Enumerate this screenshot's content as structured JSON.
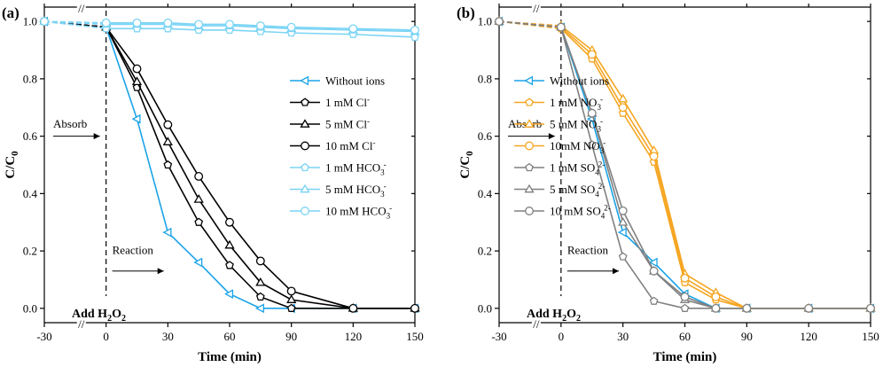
{
  "chart_data": [
    {
      "type": "line",
      "panel_label": "(a)",
      "xlabel": "Time (min)",
      "ylabel": {
        "main": "C/C",
        "sub": "0"
      },
      "x_ticks": [
        "-30",
        "0",
        "30",
        "60",
        "90",
        "120",
        "150"
      ],
      "y_ticks": [
        "0.0",
        "0.2",
        "0.4",
        "0.6",
        "0.8",
        "1.0"
      ],
      "xlim": [
        -30,
        150
      ],
      "ylim": [
        -0.05,
        1.05
      ],
      "axis_break": "//",
      "annotations": {
        "absorb": "Absorb",
        "reaction": "Reaction",
        "add": {
          "main": "Add H",
          "sub": "2",
          "mid": "O",
          "sub2": "2"
        }
      },
      "series": [
        {
          "name": "Without ions",
          "sup": "",
          "sub": "",
          "color": "#1AA3E8",
          "marker": "tri-left",
          "x": [
            -30,
            0,
            15,
            30,
            45,
            60,
            75,
            90,
            120,
            150
          ],
          "y": [
            1.0,
            0.98,
            0.66,
            0.265,
            0.16,
            0.05,
            0.0,
            0.0,
            0.0,
            0.0
          ]
        },
        {
          "name": "1 mM Cl",
          "sup": "-",
          "sub": "",
          "color": "#000000",
          "marker": "pentagon",
          "x": [
            -30,
            0,
            15,
            30,
            45,
            60,
            75,
            90,
            120,
            150
          ],
          "y": [
            1.0,
            0.98,
            0.77,
            0.5,
            0.3,
            0.15,
            0.04,
            0.0,
            0.0,
            0.0
          ]
        },
        {
          "name": "5 mM Cl",
          "sup": "-",
          "sub": "",
          "color": "#000000",
          "marker": "triangle",
          "x": [
            -30,
            0,
            15,
            30,
            45,
            60,
            75,
            90,
            120,
            150
          ],
          "y": [
            1.0,
            0.98,
            0.79,
            0.58,
            0.38,
            0.22,
            0.09,
            0.03,
            0.0,
            0.0
          ]
        },
        {
          "name": "10 mM Cl",
          "sup": "-",
          "sub": "",
          "color": "#000000",
          "marker": "circle",
          "x": [
            -30,
            0,
            15,
            30,
            45,
            60,
            75,
            90,
            120,
            150
          ],
          "y": [
            1.0,
            0.98,
            0.835,
            0.64,
            0.46,
            0.3,
            0.165,
            0.06,
            0.0,
            0.0
          ]
        },
        {
          "name": "1 mM HCO",
          "sup": "-",
          "sub": "3",
          "color": "#7AD4F5",
          "marker": "pentagon",
          "x": [
            -30,
            0,
            15,
            30,
            45,
            60,
            75,
            90,
            120,
            150
          ],
          "y": [
            1.0,
            0.975,
            0.975,
            0.975,
            0.97,
            0.97,
            0.965,
            0.96,
            0.955,
            0.945
          ]
        },
        {
          "name": "5 mM HCO",
          "sup": "-",
          "sub": "3",
          "color": "#7AD4F5",
          "marker": "triangle",
          "x": [
            -30,
            0,
            15,
            30,
            45,
            60,
            75,
            90,
            120,
            150
          ],
          "y": [
            1.0,
            0.99,
            0.99,
            0.99,
            0.985,
            0.985,
            0.98,
            0.975,
            0.97,
            0.965
          ]
        },
        {
          "name": "10 mM HCO",
          "sup": "-",
          "sub": "3",
          "color": "#7AD4F5",
          "marker": "circle",
          "x": [
            -30,
            0,
            15,
            30,
            45,
            60,
            75,
            90,
            120,
            150
          ],
          "y": [
            1.0,
            0.995,
            0.995,
            0.995,
            0.99,
            0.99,
            0.985,
            0.98,
            0.975,
            0.97
          ]
        }
      ]
    },
    {
      "type": "line",
      "panel_label": "(b)",
      "xlabel": "Time (min)",
      "ylabel": {
        "main": "C/C",
        "sub": "0"
      },
      "x_ticks": [
        "-30",
        "0",
        "30",
        "60",
        "90",
        "120",
        "150"
      ],
      "y_ticks": [
        "0.0",
        "0.2",
        "0.4",
        "0.6",
        "0.8",
        "1.0"
      ],
      "xlim": [
        -30,
        150
      ],
      "ylim": [
        -0.05,
        1.05
      ],
      "axis_break": "//",
      "annotations": {
        "absorb": "Absorb",
        "reaction": "Reaction",
        "add": {
          "main": "Add H",
          "sub": "2",
          "mid": "O",
          "sub2": "2"
        }
      },
      "series": [
        {
          "name": "Without ions",
          "sup": "",
          "sub": "",
          "color": "#1AA3E8",
          "marker": "tri-left",
          "x": [
            -30,
            0,
            15,
            30,
            45,
            60,
            75,
            90,
            120,
            150
          ],
          "y": [
            1.0,
            0.98,
            0.66,
            0.265,
            0.16,
            0.05,
            0.0,
            0.0,
            0.0,
            0.0
          ]
        },
        {
          "name": "1 mM NO",
          "sup": "-",
          "sub": "3",
          "color": "#F5A623",
          "marker": "pentagon",
          "x": [
            -30,
            0,
            15,
            30,
            45,
            60,
            75,
            90,
            120,
            150
          ],
          "y": [
            1.0,
            0.975,
            0.87,
            0.68,
            0.51,
            0.09,
            0.03,
            0.0,
            0.0,
            0.0
          ]
        },
        {
          "name": "5 mM NO",
          "sup": "-",
          "sub": "3",
          "color": "#F5A623",
          "marker": "triangle",
          "x": [
            -30,
            0,
            15,
            30,
            45,
            60,
            75,
            90,
            120,
            150
          ],
          "y": [
            1.0,
            0.985,
            0.9,
            0.73,
            0.55,
            0.12,
            0.055,
            0.0,
            0.0,
            0.0
          ]
        },
        {
          "name": "10mM NO",
          "sup": "-",
          "sub": "3",
          "color": "#F5A623",
          "marker": "circle",
          "x": [
            -30,
            0,
            15,
            30,
            45,
            60,
            75,
            90,
            120,
            150
          ],
          "y": [
            1.0,
            0.98,
            0.885,
            0.7,
            0.53,
            0.105,
            0.04,
            0.0,
            0.0,
            0.0
          ]
        },
        {
          "name": "1 mM SO",
          "sup": "2-",
          "sub": "4",
          "color": "#808080",
          "marker": "pentagon",
          "x": [
            -30,
            0,
            15,
            30,
            45,
            60,
            75,
            90,
            120,
            150
          ],
          "y": [
            1.0,
            0.98,
            0.57,
            0.18,
            0.025,
            0.0,
            0.0,
            0.0,
            0.0,
            0.0
          ]
        },
        {
          "name": "5 mM SO",
          "sup": "2-",
          "sub": "4",
          "color": "#808080",
          "marker": "triangle",
          "x": [
            -30,
            0,
            15,
            30,
            45,
            60,
            75,
            90,
            120,
            150
          ],
          "y": [
            1.0,
            0.98,
            0.68,
            0.3,
            0.13,
            0.03,
            0.0,
            0.0,
            0.0,
            0.0
          ]
        },
        {
          "name": "10 mM SO",
          "sup": "2-",
          "sub": "4",
          "color": "#808080",
          "marker": "circle",
          "x": [
            -30,
            0,
            15,
            30,
            45,
            60,
            75,
            90,
            120,
            150
          ],
          "y": [
            1.0,
            0.98,
            0.68,
            0.34,
            0.13,
            0.04,
            0.0,
            0.0,
            0.0,
            0.0
          ]
        }
      ]
    }
  ]
}
